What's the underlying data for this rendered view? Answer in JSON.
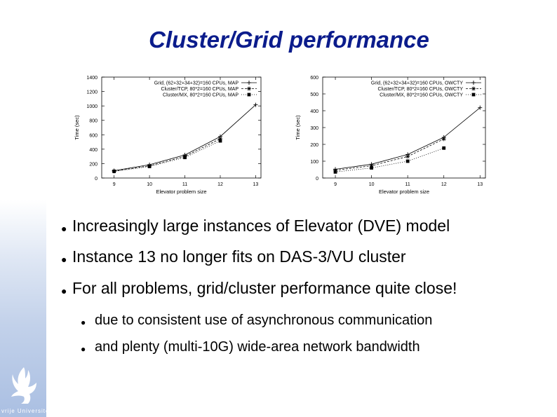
{
  "slide": {
    "title": "Cluster/Grid performance",
    "logo_text": "vrije Universiteit"
  },
  "chart_data": [
    {
      "type": "line",
      "title": "",
      "xlabel": "Elevator problem size",
      "ylabel": "Time (sec)",
      "x": [
        9,
        10,
        11,
        12,
        13
      ],
      "xlim": [
        8.65,
        13.15
      ],
      "ylim": [
        0,
        1400
      ],
      "yticks": [
        0,
        200,
        400,
        600,
        800,
        1000,
        1200,
        1400
      ],
      "xticks": [
        9,
        10,
        11,
        12,
        13
      ],
      "grid": false,
      "legend": "top-left",
      "series": [
        {
          "name": "Grid, (62+32+34+32)=160 CPUs, MAP",
          "marker": "plus",
          "dash": "none",
          "values": [
            102,
            185,
            320,
            575,
            1015
          ]
        },
        {
          "name": "Cluster/TCP, 80*2=160 CPUs, MAP",
          "marker": "x",
          "dash": "3,2",
          "values": [
            95,
            170,
            300,
            545,
            null
          ]
        },
        {
          "name": "Cluster/MX, 80*2=160 CPUs, MAP",
          "marker": "square",
          "dash": "1,2",
          "values": [
            92,
            160,
            285,
            515,
            null
          ]
        }
      ]
    },
    {
      "type": "line",
      "title": "",
      "xlabel": "Elevator problem size",
      "ylabel": "Time (sec)",
      "x": [
        9,
        10,
        11,
        12,
        13
      ],
      "xlim": [
        8.65,
        13.15
      ],
      "ylim": [
        0,
        600
      ],
      "yticks": [
        0,
        100,
        200,
        300,
        400,
        500,
        600
      ],
      "xticks": [
        9,
        10,
        11,
        12,
        13
      ],
      "grid": false,
      "legend": "top-left",
      "series": [
        {
          "name": "Grid, (62+32+34+32)=160 CPUs, OWCTY",
          "marker": "plus",
          "dash": "none",
          "values": [
            52,
            82,
            140,
            242,
            418
          ]
        },
        {
          "name": "Cluster/TCP, 80*2=160 CPUs, OWCTY",
          "marker": "x",
          "dash": "3,2",
          "values": [
            46,
            73,
            128,
            232,
            null
          ]
        },
        {
          "name": "Cluster/MX, 80*2=160 CPUs, OWCTY",
          "marker": "square",
          "dash": "1,2",
          "values": [
            36,
            60,
            100,
            178,
            null
          ]
        }
      ]
    }
  ],
  "bullets": [
    {
      "text": "Increasingly large instances of Elevator (DVE) model",
      "sub": []
    },
    {
      "text": "Instance 13 no longer fits on DAS-3/VU cluster",
      "sub": []
    },
    {
      "text": "For all problems, grid/cluster performance quite close!",
      "sub": [
        "due to consistent use of asynchronous communication",
        "and plenty (multi-10G) wide-area network bandwidth"
      ]
    }
  ]
}
